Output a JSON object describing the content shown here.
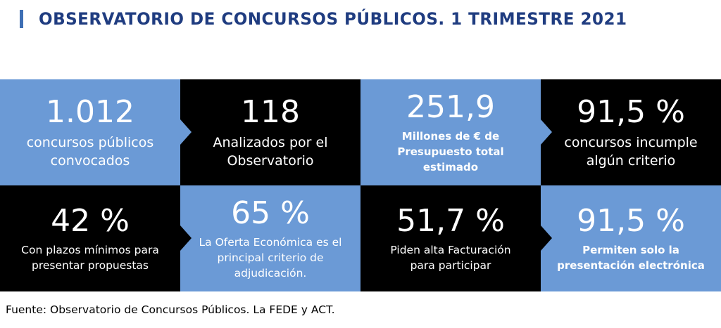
{
  "title": "OBSERVATORIO DE CONCURSOS PÚBLICOS. 1 TRIMESTRE 2021",
  "colors": {
    "title": "#1f3c80",
    "accent": "#3e6fb4",
    "tile_blue": "#6b9ad6",
    "tile_black": "#000000"
  },
  "tiles": [
    {
      "value": "1.012",
      "label_1": "concursos públicos",
      "label_2": "convocados",
      "label_3": ""
    },
    {
      "value": "118",
      "label_1": "Analizados por el",
      "label_2": "Observatorio",
      "label_3": ""
    },
    {
      "value": "251,9",
      "label_1": "Millones de € de",
      "label_2": "Presupuesto total",
      "label_3": "estimado"
    },
    {
      "value": "91,5 %",
      "label_1": "concursos incumple",
      "label_2": "algún criterio",
      "label_3": ""
    },
    {
      "value": "42 %",
      "label_1": "Con plazos mínimos para",
      "label_2": "presentar propuestas",
      "label_3": ""
    },
    {
      "value": "65 %",
      "label_1": "La Oferta Económica es el",
      "label_2": "principal criterio de",
      "label_3": "adjudicación."
    },
    {
      "value": "51,7 %",
      "label_1": "Piden alta Facturación",
      "label_2": "para participar",
      "label_3": ""
    },
    {
      "value": "91,5 %",
      "label_1": "Permiten solo la",
      "label_2": "presentación electrónica",
      "label_3": ""
    }
  ],
  "source": "Fuente: Observatorio de Concursos Públicos. La FEDE y ACT."
}
